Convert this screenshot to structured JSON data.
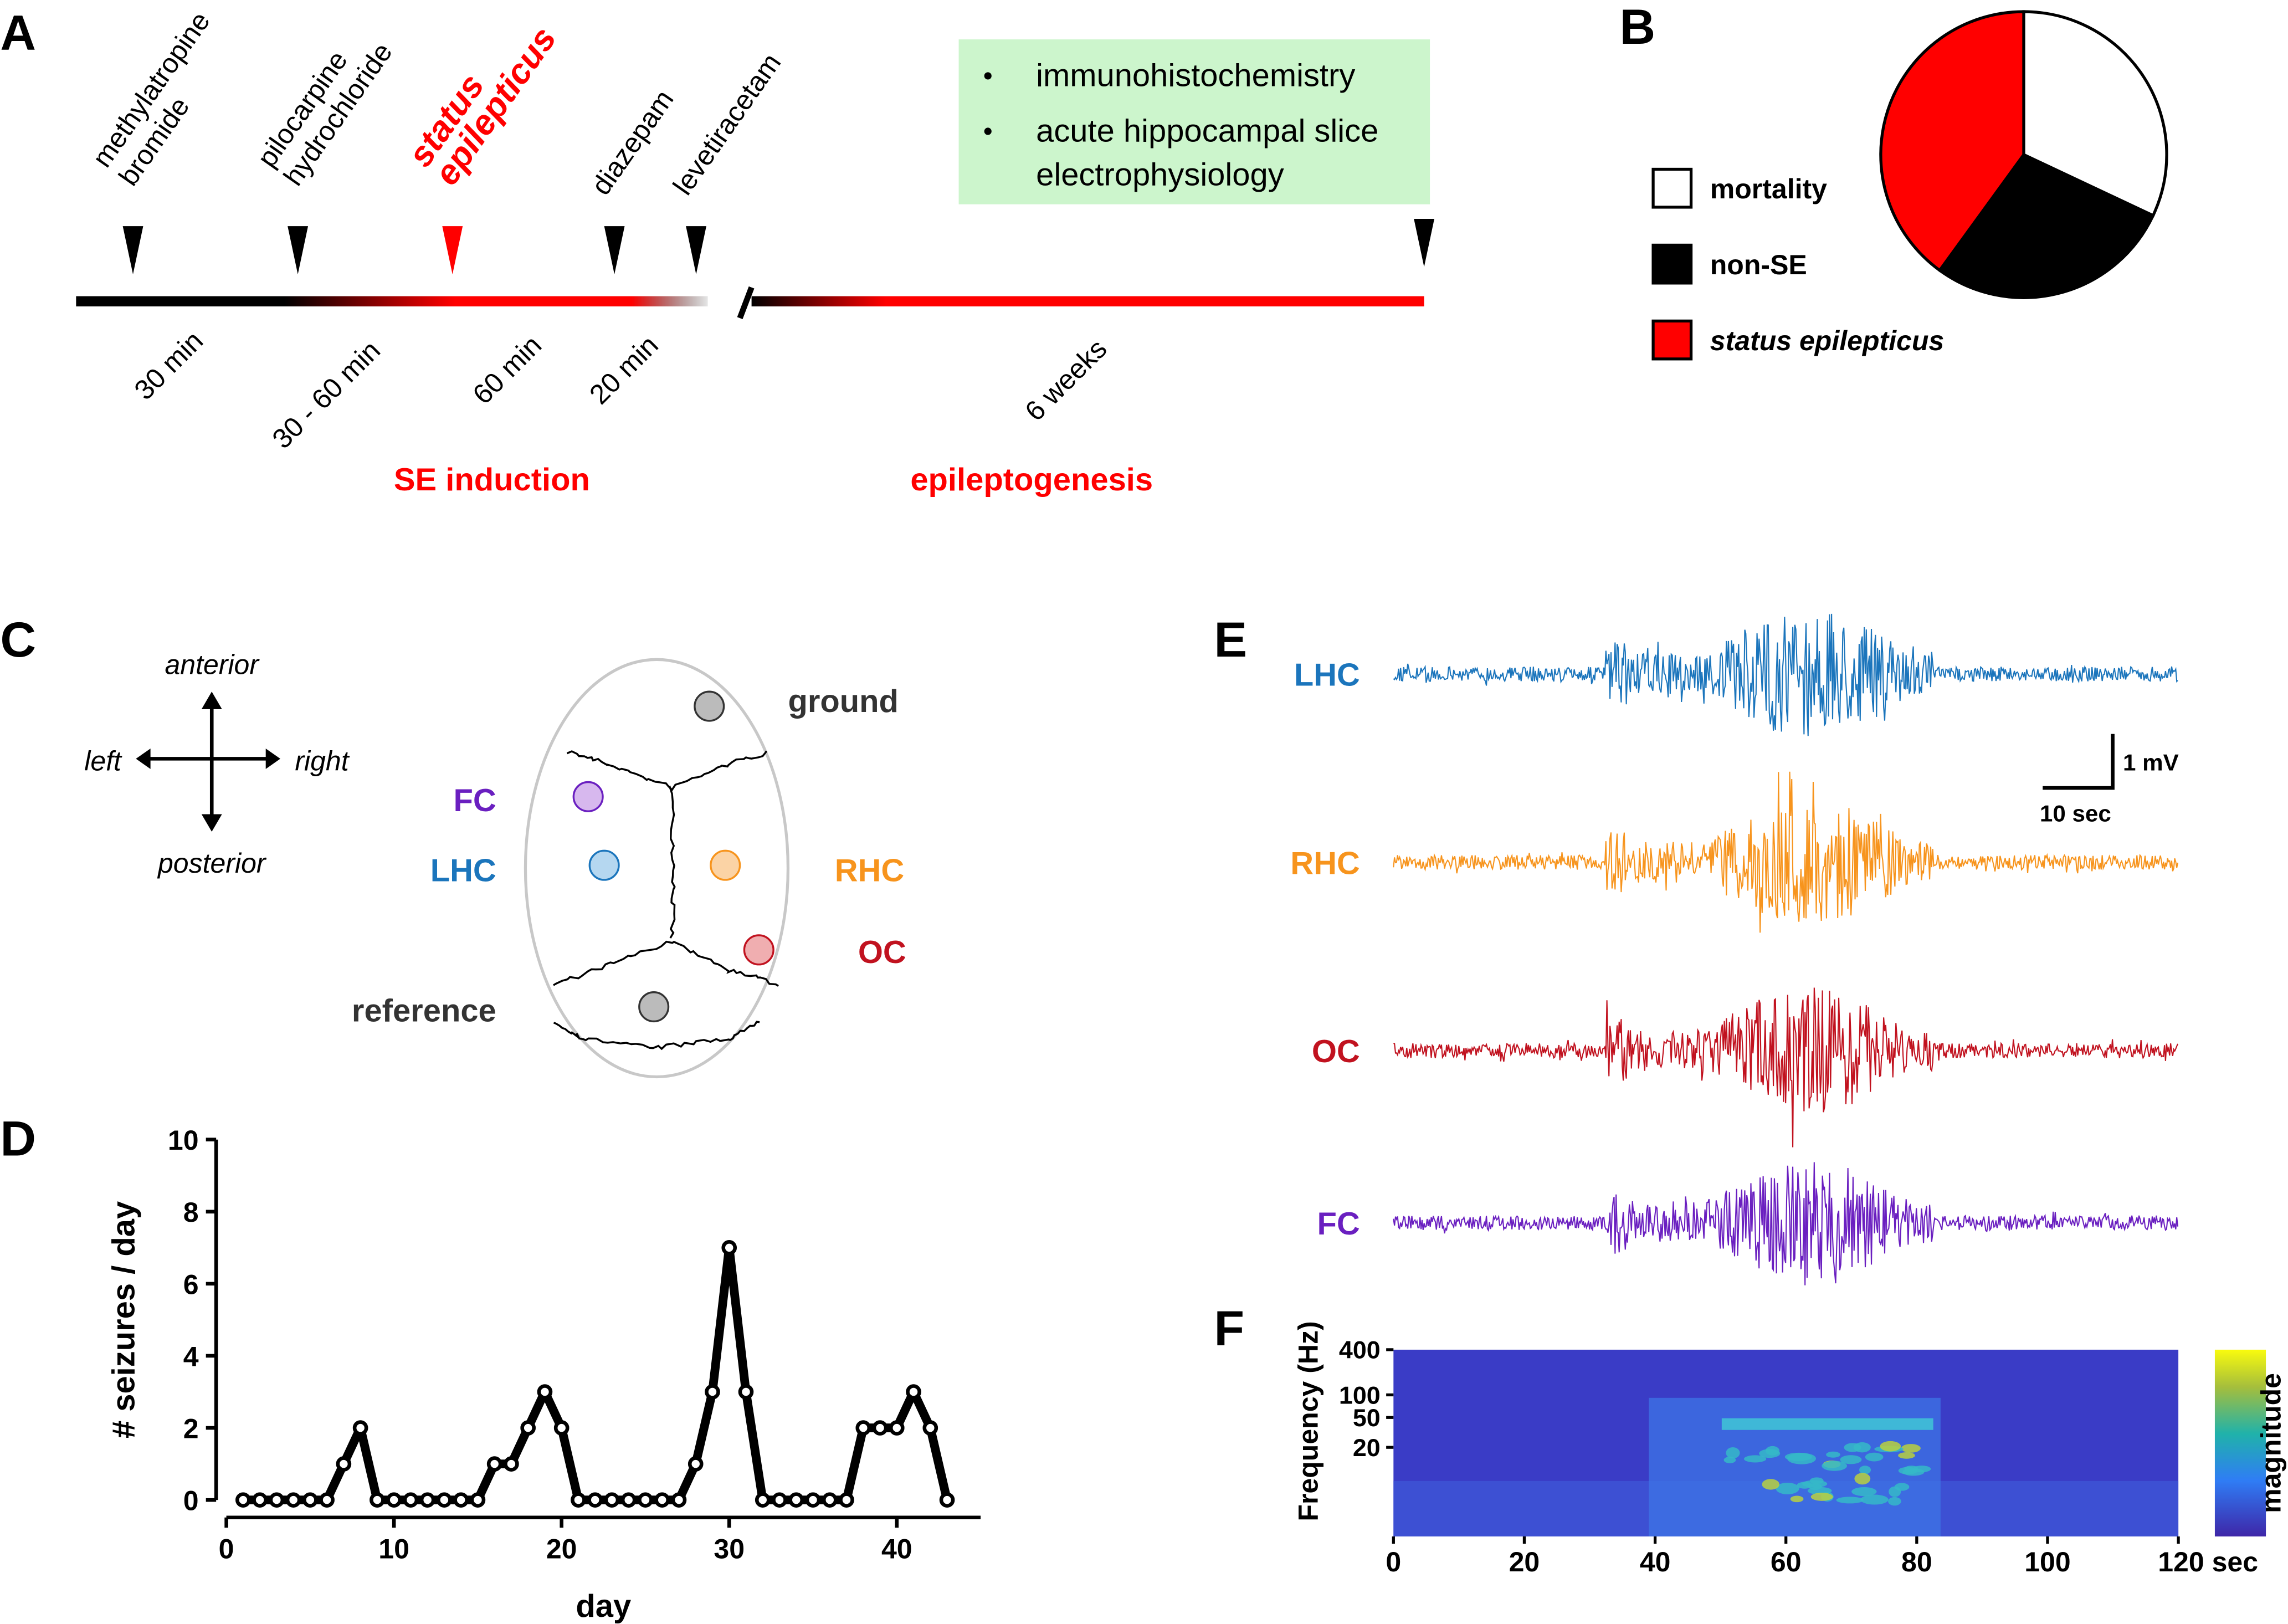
{
  "panel_labels": [
    "A",
    "B",
    "C",
    "D",
    "E",
    "F"
  ],
  "timeline": {
    "drugs": [
      [
        "methylatropine",
        "bromide"
      ],
      [
        "pilocarpine",
        "hydrochloride"
      ],
      [
        "status",
        "epilepticus"
      ],
      [
        "diazepam"
      ],
      [
        "levetiracetam"
      ]
    ],
    "durations": [
      "30 min",
      "30 - 60 min",
      "60 min",
      "20 min",
      "6 weeks"
    ],
    "phases": [
      "SE induction",
      "epileptogenesis"
    ],
    "outcomes": [
      [
        "immunohistochemistry"
      ],
      [
        "acute hippocampal slice",
        "electrophysiology"
      ]
    ]
  },
  "electrodes": {
    "directions": [
      "anterior",
      "posterior",
      "left",
      "right"
    ],
    "sites": [
      "ground",
      "FC",
      "LHC",
      "RHC",
      "OC",
      "reference"
    ]
  },
  "traces": {
    "channels": [
      "LHC",
      "RHC",
      "OC",
      "FC"
    ],
    "scale_bar": [
      "1 mV",
      "10 sec"
    ]
  },
  "chart_data": [
    {
      "type": "pie",
      "categories": [
        "mortality",
        "non-SE",
        "status epilepticus"
      ],
      "values": [
        32,
        28,
        40
      ],
      "colors": [
        "#ffffff",
        "#000000",
        "#ff0000"
      ]
    },
    {
      "type": "line",
      "x_label": "day",
      "y_label": "# seizures / day",
      "x": [
        1,
        2,
        3,
        4,
        5,
        6,
        7,
        8,
        9,
        10,
        11,
        12,
        13,
        14,
        15,
        16,
        17,
        18,
        19,
        20,
        21,
        22,
        23,
        24,
        25,
        26,
        27,
        28,
        29,
        30,
        31,
        32,
        33,
        34,
        35,
        36,
        37,
        38,
        39,
        40,
        41,
        42,
        43
      ],
      "values": [
        0,
        0,
        0,
        0,
        0,
        0,
        1,
        2,
        0,
        0,
        0,
        0,
        0,
        0,
        0,
        1,
        1,
        2,
        3,
        2,
        0,
        0,
        0,
        0,
        0,
        0,
        0,
        1,
        3,
        7,
        3,
        0,
        0,
        0,
        0,
        0,
        0,
        2,
        2,
        2,
        3,
        2,
        0
      ],
      "color": "#000000",
      "xlim": [
        0,
        45
      ],
      "xticks": [
        0,
        10,
        20,
        30,
        40
      ],
      "ylim": [
        0,
        10
      ],
      "yticks": [
        0,
        2,
        4,
        6,
        8,
        10
      ]
    },
    {
      "type": "spectrogram",
      "y_label": "Frequency (Hz)",
      "colorbar_label": "magnitude",
      "xlim": [
        0,
        120
      ],
      "xticks": [
        0,
        20,
        40,
        60,
        80,
        100,
        {
          "value": 120,
          "label": "120 sec"
        }
      ],
      "ylim": [
        1.3,
        400
      ],
      "yticks": [
        20,
        50,
        100,
        400
      ],
      "log_y": true
    }
  ]
}
